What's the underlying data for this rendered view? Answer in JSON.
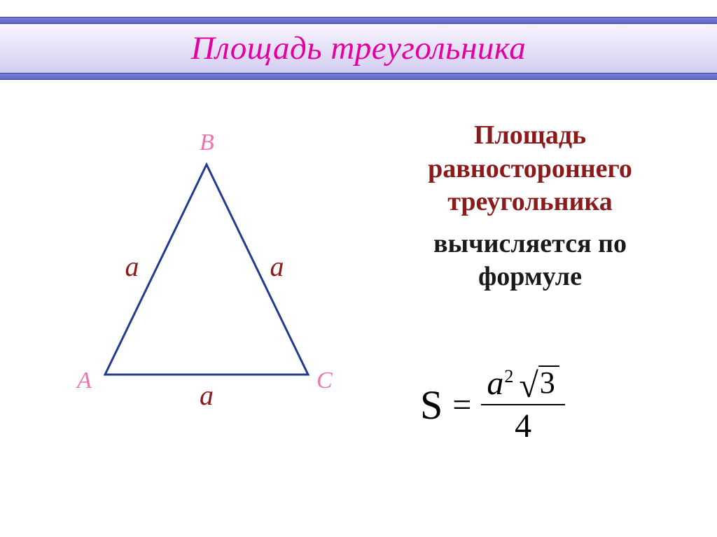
{
  "colors": {
    "band_border": "#6b70cf",
    "band_fill_top": "#f9f5ff",
    "band_fill_bottom": "#d2cef0",
    "title_color": "#e4009e",
    "frame_border": "#747ad3",
    "triangle_stroke": "#223b8e",
    "vertex_label": "#f173ae",
    "side_label": "#8d1a1a",
    "text_heading": "#8b1a1a",
    "text_sub": "#1a1a1a",
    "formula": "#000000"
  },
  "title": "Площадь треугольника",
  "text": {
    "line1a": "Площадь",
    "line1b": "равностороннего",
    "line1c": "треугольника",
    "line2a": "вычисляется по",
    "line2b": "формуле"
  },
  "triangle": {
    "type": "triangle-diagram",
    "stroke_width": 3,
    "points": {
      "A": [
        70,
        360
      ],
      "B": [
        215,
        60
      ],
      "C": [
        360,
        360
      ]
    },
    "vertices": {
      "A": "A",
      "B": "B",
      "C": "C"
    },
    "side_label": "a",
    "vertex_fontsize": 34,
    "side_fontsize": 40
  },
  "formula": {
    "lhs": "S",
    "eq": "=",
    "num_base": "a",
    "num_exp": "2",
    "radicand": "3",
    "den": "4"
  }
}
